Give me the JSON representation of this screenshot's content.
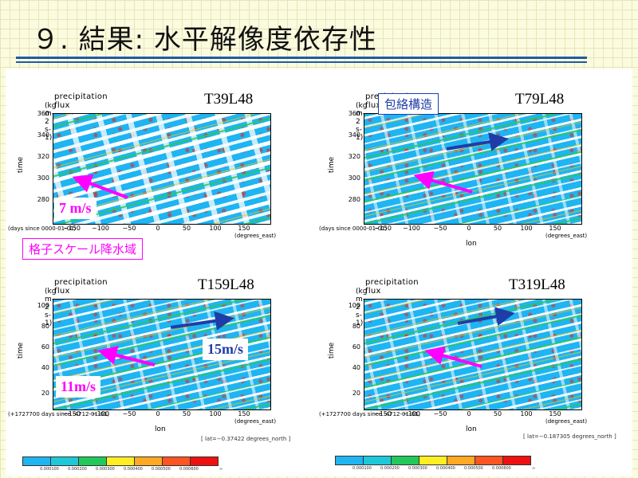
{
  "slide": {
    "title": "９. 結果: 水平解像度依存性",
    "rule_color": "#1f5aa6",
    "background": "#fbfbdf"
  },
  "panels": [
    {
      "resolution": "T39L48",
      "title": "precipitation flux",
      "units": "(kg m-2 s-1)",
      "y_label": "time",
      "y_ticks": [
        "360",
        "340",
        "320",
        "300",
        "280"
      ],
      "x_ticks": [
        "−150",
        "−100",
        "−50",
        "0",
        "50",
        "100",
        "150"
      ],
      "x_unit": "(degrees_east)",
      "x_label": "",
      "time_origin": "(days since 0000-01-01)"
    },
    {
      "resolution": "T79L48",
      "title": "precipitation flux",
      "units": "(kg m-2 s-1)",
      "y_label": "time",
      "y_ticks": [
        "360",
        "340",
        "320",
        "300",
        "280"
      ],
      "x_ticks": [
        "−150",
        "−100",
        "−50",
        "0",
        "50",
        "100",
        "150"
      ],
      "x_unit": "(degrees_east)",
      "x_label": "lon",
      "time_origin": "(days since 0000-01-01)"
    },
    {
      "resolution": "T159L48",
      "title": "precipitation flux",
      "units": "(kg m-2 s-1)",
      "y_label": "time",
      "y_ticks": [
        "100",
        "80",
        "60",
        "40",
        "20"
      ],
      "x_ticks": [
        "−150",
        "−100",
        "−50",
        "0",
        "50",
        "100",
        "150"
      ],
      "x_unit": "(degrees_east)",
      "x_label": "lon",
      "time_origin": "(+1727700 days since -4712-01-01)"
    },
    {
      "resolution": "T319L48",
      "title": "precipitation flux",
      "units": "(kg m-2 s-1)",
      "y_label": "time",
      "y_ticks": [
        "100",
        "80",
        "60",
        "40",
        "20"
      ],
      "x_ticks": [
        "−150",
        "−100",
        "−50",
        "0",
        "50",
        "100",
        "150"
      ],
      "x_unit": "(degrees_east)",
      "x_label": "lon",
      "time_origin": "(+1727700 days since -4712-01-01)"
    }
  ],
  "annotations": {
    "envelope_structure": "包絡構造",
    "grid_scale_precip": "格子スケール降水域",
    "speed_7": "7 m/s",
    "speed_11": "11m/s",
    "speed_15": "15m/s",
    "westward_color": "#ff00ff",
    "eastward_color": "#1f3da8"
  },
  "lat_captions": {
    "left": "[ lat=−0.37422 degrees_north ]",
    "right": "[ lat=−0.187305 degrees_north ]"
  },
  "colorbar": {
    "colors": [
      "#1fb4f2",
      "#1fc8d8",
      "#22c85a",
      "#ffee22",
      "#ffaa22",
      "#ff5522",
      "#ee1111"
    ],
    "ticks": [
      "0.000100",
      "0.000200",
      "0.000300",
      "0.000400",
      "0.000500",
      "0.000600"
    ],
    "end_label": "∞"
  }
}
